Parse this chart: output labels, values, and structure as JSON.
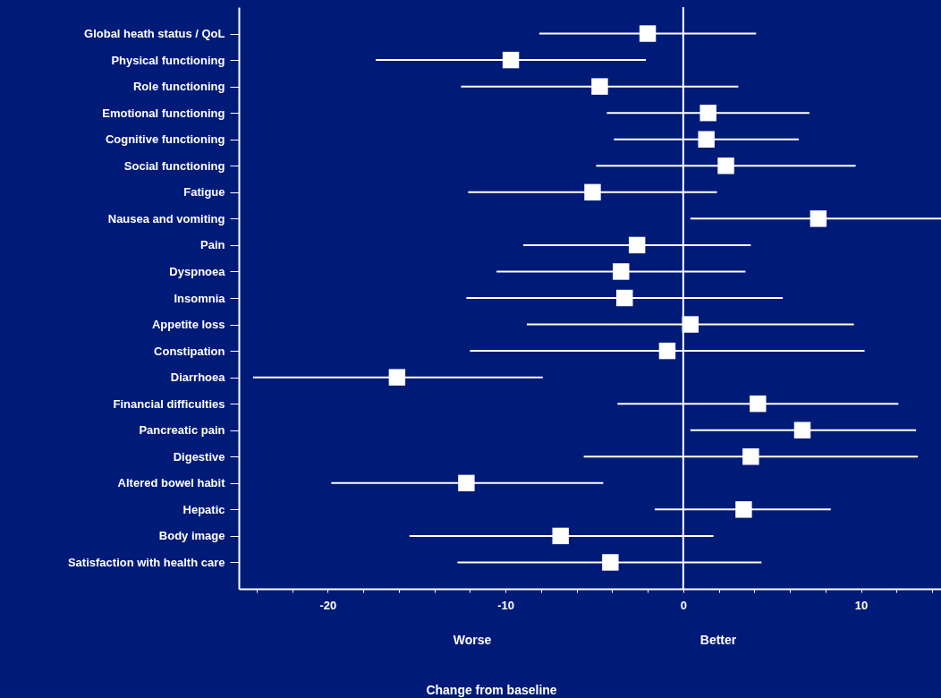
{
  "chart_data": {
    "type": "scatter",
    "orientation": "horizontal",
    "annotations": [
      "Worse",
      "Better",
      "Change from baseline"
    ],
    "categories": [
      "Global heath status / QoL",
      "Physical functioning",
      "Role functioning",
      "Emotional functioning",
      "Cognitive functioning",
      "Social functioning",
      "Fatigue",
      "Nausea and vomiting",
      "Pain",
      "Dyspnoea",
      "Insomnia",
      "Appetite loss",
      "Constipation",
      "Diarrhoea",
      "Financial difficulties",
      "Pancreatic pain",
      "Digestive",
      "Altered bowel habit",
      "Hepatic",
      "Body image",
      "Satisfaction with health care"
    ],
    "color": "#ffffff",
    "values": [
      -2.0,
      -9.7,
      -4.7,
      1.4,
      1.3,
      2.4,
      -5.1,
      7.6,
      -2.6,
      -3.5,
      -3.3,
      0.4,
      -0.9,
      -16.1,
      4.2,
      6.7,
      3.8,
      -12.2,
      3.4,
      -6.9,
      -4.1
    ],
    "errors": [
      [
        -8.1,
        4.1
      ],
      [
        -17.3,
        -2.1
      ],
      [
        -12.5,
        3.1
      ],
      [
        -4.3,
        7.1
      ],
      [
        -3.9,
        6.5
      ],
      [
        -4.9,
        9.7
      ],
      [
        -12.1,
        1.9
      ],
      [
        0.4,
        14.5
      ],
      [
        -9.0,
        3.8
      ],
      [
        -10.5,
        3.5
      ],
      [
        -12.2,
        5.6
      ],
      [
        -8.8,
        9.6
      ],
      [
        -12.0,
        10.2
      ],
      [
        -24.2,
        -7.9
      ],
      [
        -3.7,
        12.1
      ],
      [
        0.4,
        13.1
      ],
      [
        -5.6,
        13.2
      ],
      [
        -19.8,
        -4.5
      ],
      [
        -1.6,
        8.3
      ],
      [
        -15.4,
        1.7
      ],
      [
        -12.7,
        4.4
      ]
    ],
    "xlim": [
      -25,
      14.5
    ],
    "xticks": [
      {
        "value": -24,
        "label": null
      },
      {
        "value": -22,
        "label": null
      },
      -20,
      {
        "value": -18,
        "label": null
      },
      {
        "value": -16,
        "label": null
      },
      {
        "value": -14,
        "label": null
      },
      {
        "value": -12,
        "label": null
      },
      -10,
      {
        "value": -8,
        "label": null
      },
      {
        "value": -6,
        "label": null
      },
      {
        "value": -4,
        "label": null
      },
      {
        "value": -2,
        "label": null
      },
      0,
      {
        "value": 2,
        "label": null
      },
      {
        "value": 4,
        "label": null
      },
      {
        "value": 6,
        "label": null
      },
      {
        "value": 8,
        "label": null
      },
      10,
      {
        "value": 12,
        "label": null
      },
      {
        "value": 14,
        "label": null
      }
    ],
    "ref_lines": [
      {
        "axis": "x",
        "value": 0,
        "color": "#ffffff"
      }
    ],
    "marker": "square",
    "grid": false
  }
}
